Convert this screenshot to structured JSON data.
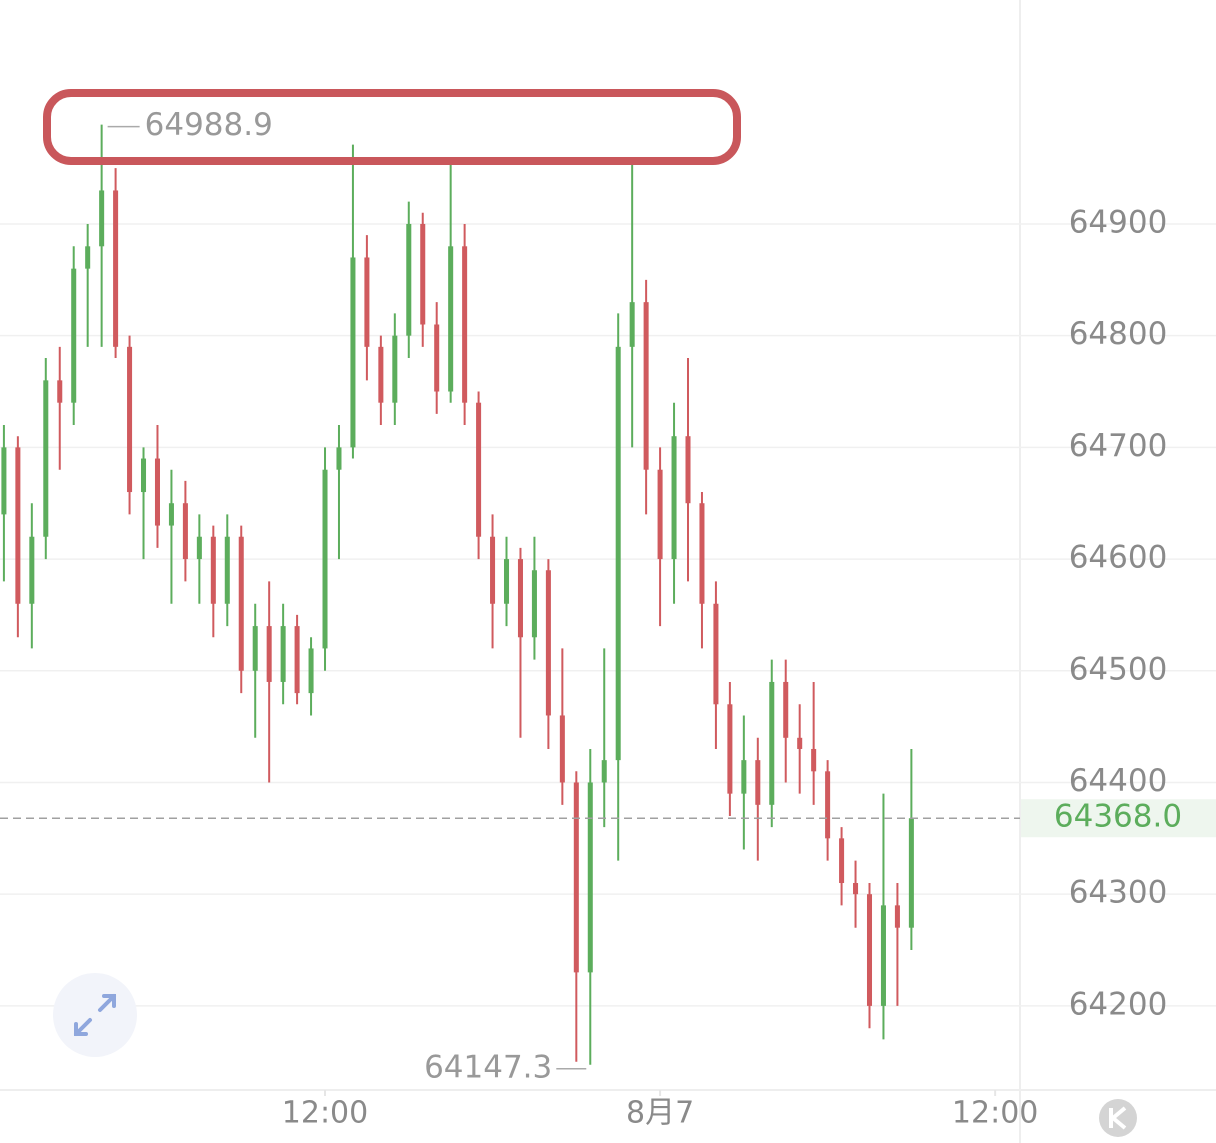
{
  "chart_data": {
    "type": "candlestick",
    "x": [
      0.5,
      1,
      1.5,
      2,
      2.5,
      3,
      3.5,
      4,
      4.5,
      5,
      5.5,
      6,
      6.5,
      7,
      7.5,
      8,
      8.5,
      9,
      9.5,
      10,
      10.5,
      11,
      11.5,
      12,
      12.5,
      13,
      13.5,
      14,
      14.5,
      15,
      15.5,
      16,
      16.5,
      17,
      17.5,
      18,
      18.5,
      19,
      19.5,
      20,
      20.5,
      21,
      21.5,
      22,
      22.5,
      23,
      23.5,
      24,
      24.5,
      25,
      25.5,
      26,
      26.5,
      27,
      27.5,
      28,
      28.5,
      29,
      29.5,
      30,
      30.5,
      31,
      31.5,
      32,
      32.5,
      33
    ],
    "open": [
      64640,
      64700,
      64560,
      64620,
      64760,
      64740,
      64860,
      64880,
      64930,
      64790,
      64660,
      64690,
      64630,
      64650,
      64600,
      64620,
      64560,
      64620,
      64500,
      64540,
      64490,
      64540,
      64480,
      64520,
      64680,
      64700,
      64870,
      64790,
      64740,
      64800,
      64900,
      64810,
      64750,
      64880,
      64740,
      64620,
      64560,
      64600,
      64530,
      64590,
      64460,
      64400,
      64230,
      64400,
      64420,
      64790,
      64830,
      64680,
      64600,
      64710,
      64650,
      64560,
      64470,
      64390,
      64420,
      64380,
      64490,
      64440,
      64430,
      64410,
      64350,
      64310,
      64300,
      64200,
      64290,
      64270
    ],
    "high": [
      64720,
      64710,
      64650,
      64780,
      64790,
      64880,
      64900,
      64988.9,
      64950,
      64800,
      64700,
      64720,
      64680,
      64670,
      64640,
      64630,
      64640,
      64630,
      64560,
      64580,
      64560,
      64550,
      64530,
      64700,
      64720,
      64971,
      64890,
      64800,
      64820,
      64920,
      64910,
      64830,
      64953,
      64900,
      64750,
      64640,
      64620,
      64610,
      64620,
      64600,
      64520,
      64410,
      64430,
      64520,
      64820,
      64953,
      64850,
      64700,
      64740,
      64780,
      64660,
      64580,
      64490,
      64460,
      64440,
      64510,
      64510,
      64470,
      64490,
      64420,
      64360,
      64330,
      64310,
      64390,
      64310,
      64430
    ],
    "low": [
      64580,
      64530,
      64520,
      64600,
      64680,
      64720,
      64790,
      64790,
      64780,
      64640,
      64600,
      64610,
      64560,
      64580,
      64560,
      64530,
      64540,
      64480,
      64440,
      64400,
      64470,
      64470,
      64460,
      64500,
      64600,
      64690,
      64760,
      64720,
      64720,
      64780,
      64790,
      64730,
      64740,
      64720,
      64600,
      64520,
      64540,
      64440,
      64510,
      64430,
      64380,
      64150,
      64147.3,
      64360,
      64330,
      64700,
      64640,
      64540,
      64560,
      64580,
      64520,
      64430,
      64370,
      64340,
      64330,
      64360,
      64400,
      64390,
      64380,
      64330,
      64290,
      64270,
      64180,
      64170,
      64200,
      64250
    ],
    "close": [
      64700,
      64560,
      64620,
      64760,
      64740,
      64860,
      64880,
      64930,
      64790,
      64660,
      64690,
      64630,
      64650,
      64600,
      64620,
      64560,
      64620,
      64500,
      64540,
      64490,
      64540,
      64480,
      64520,
      64680,
      64700,
      64870,
      64790,
      64740,
      64800,
      64900,
      64810,
      64750,
      64880,
      64740,
      64620,
      64560,
      64600,
      64530,
      64590,
      64460,
      64400,
      64230,
      64400,
      64420,
      64790,
      64830,
      64680,
      64600,
      64710,
      64650,
      64560,
      64470,
      64390,
      64420,
      64380,
      64490,
      64440,
      64430,
      64410,
      64350,
      64310,
      64300,
      64200,
      64290,
      64270,
      64368
    ],
    "up_color": "#5cad5c",
    "down_color": "#d05a5e",
    "xlim": [
      0.36,
      36.89
    ],
    "ylim": [
      64124.7,
      65100.5
    ],
    "xticks": [
      {
        "value": 12,
        "label": "12:00"
      },
      {
        "value": 24,
        "label": "8月7"
      },
      {
        "value": 36,
        "label": "12:00"
      }
    ],
    "yticks": [
      64200,
      64300,
      64400,
      64500,
      64600,
      64700,
      64800,
      64900
    ],
    "last_price_label": "64368.0",
    "grid": true
  }
}
